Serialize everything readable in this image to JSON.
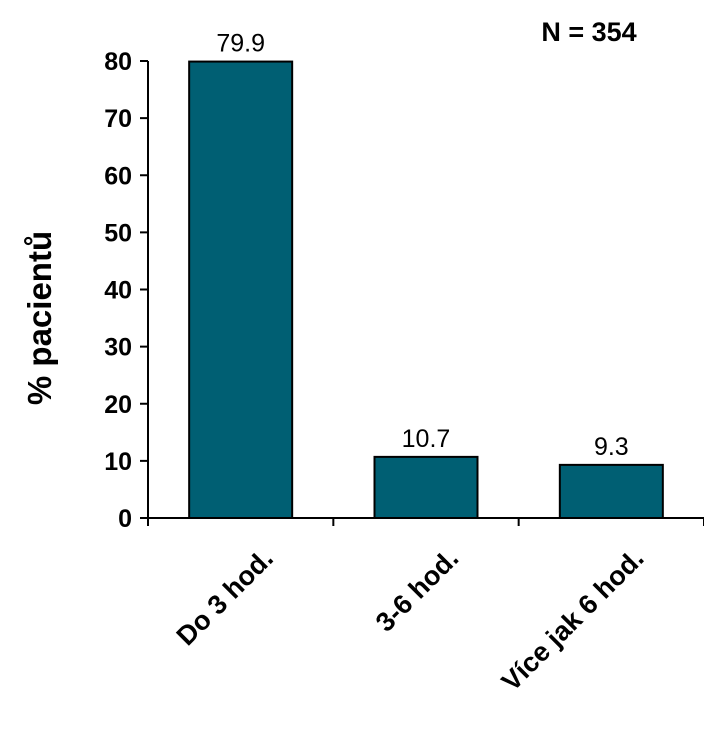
{
  "chart_data": {
    "type": "bar",
    "categories": [
      "Do 3 hod.",
      "3-6 hod.",
      "Více jak 6 hod."
    ],
    "values": [
      79.9,
      10.7,
      9.3
    ],
    "value_labels": [
      "79.9",
      "10.7",
      "9.3"
    ],
    "title": "",
    "xlabel": "",
    "ylabel": "% pacientů",
    "annotation": "N = 354",
    "ylim": [
      0,
      80
    ],
    "yticks": [
      0,
      10,
      20,
      30,
      40,
      50,
      60,
      70,
      80
    ],
    "grid": false,
    "legend": "none",
    "bar_color": "#005F73",
    "bar_edge_color": "#000000"
  }
}
